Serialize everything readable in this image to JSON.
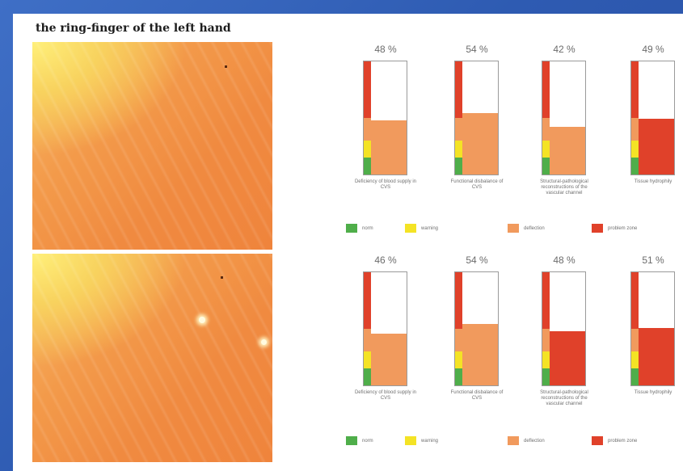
{
  "title": "the ring-finger of the left hand",
  "colors": {
    "norm": "#4fae4a",
    "warning": "#f4e325",
    "deflection": "#f19a5d",
    "problem": "#e0412a"
  },
  "legend": [
    {
      "key": "norm",
      "label": "norm"
    },
    {
      "key": "warning",
      "label": "warning"
    },
    {
      "key": "deflection",
      "label": "deflection"
    },
    {
      "key": "problem",
      "label": "problem zone"
    }
  ],
  "chart_data": [
    {
      "type": "bar",
      "categories": [
        "Deficiency of blood supply in CVS",
        "Functional disbalance of CVS",
        "Structural-pathological reconstructions of the vascular channel",
        "Tissue hydrophily"
      ],
      "values": [
        48,
        54,
        42,
        49
      ],
      "value_labels": [
        "48 %",
        "54 %",
        "42 %",
        "49 %"
      ],
      "bar_colors": [
        "deflection",
        "deflection",
        "deflection",
        "problem"
      ],
      "ylim": [
        0,
        100
      ]
    },
    {
      "type": "bar",
      "categories": [
        "Deficiency of blood supply in CVS",
        "Functional disbalance of CVS",
        "Structural-pathological reconstructions of the vascular channel",
        "Tissue hydrophily"
      ],
      "values": [
        46,
        54,
        48,
        51
      ],
      "value_labels": [
        "46 %",
        "54 %",
        "48 %",
        "51 %"
      ],
      "bar_colors": [
        "deflection",
        "deflection",
        "problem",
        "problem"
      ],
      "ylim": [
        0,
        100
      ]
    }
  ]
}
